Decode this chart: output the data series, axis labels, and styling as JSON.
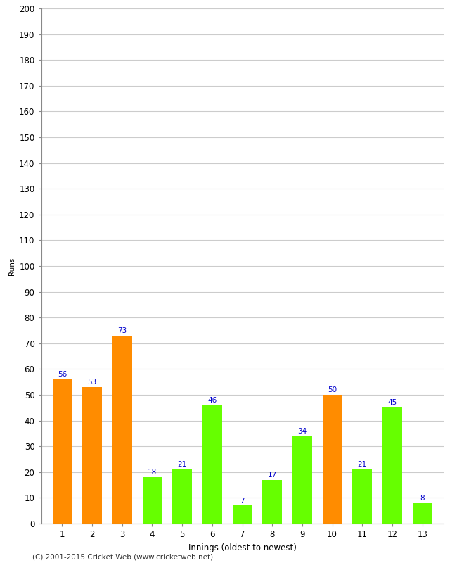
{
  "title": "",
  "xlabel": "Innings (oldest to newest)",
  "ylabel": "Runs",
  "categories": [
    1,
    2,
    3,
    4,
    5,
    6,
    7,
    8,
    9,
    10,
    11,
    12,
    13
  ],
  "values": [
    56,
    53,
    73,
    18,
    21,
    46,
    7,
    17,
    34,
    50,
    21,
    45,
    8
  ],
  "bar_colors": [
    "#FF8C00",
    "#FF8C00",
    "#FF8C00",
    "#66FF00",
    "#66FF00",
    "#66FF00",
    "#66FF00",
    "#66FF00",
    "#66FF00",
    "#FF8C00",
    "#66FF00",
    "#66FF00",
    "#66FF00"
  ],
  "ylim": [
    0,
    200
  ],
  "yticks": [
    0,
    10,
    20,
    30,
    40,
    50,
    60,
    70,
    80,
    90,
    100,
    110,
    120,
    130,
    140,
    150,
    160,
    170,
    180,
    190,
    200
  ],
  "label_color": "#0000CC",
  "label_fontsize": 7.5,
  "axis_fontsize": 8.5,
  "ylabel_fontsize": 7.5,
  "xlabel_fontsize": 8.5,
  "background_color": "#FFFFFF",
  "grid_color": "#CCCCCC",
  "footer": "(C) 2001-2015 Cricket Web (www.cricketweb.net)",
  "footer_fontsize": 7.5,
  "bar_width": 0.65
}
